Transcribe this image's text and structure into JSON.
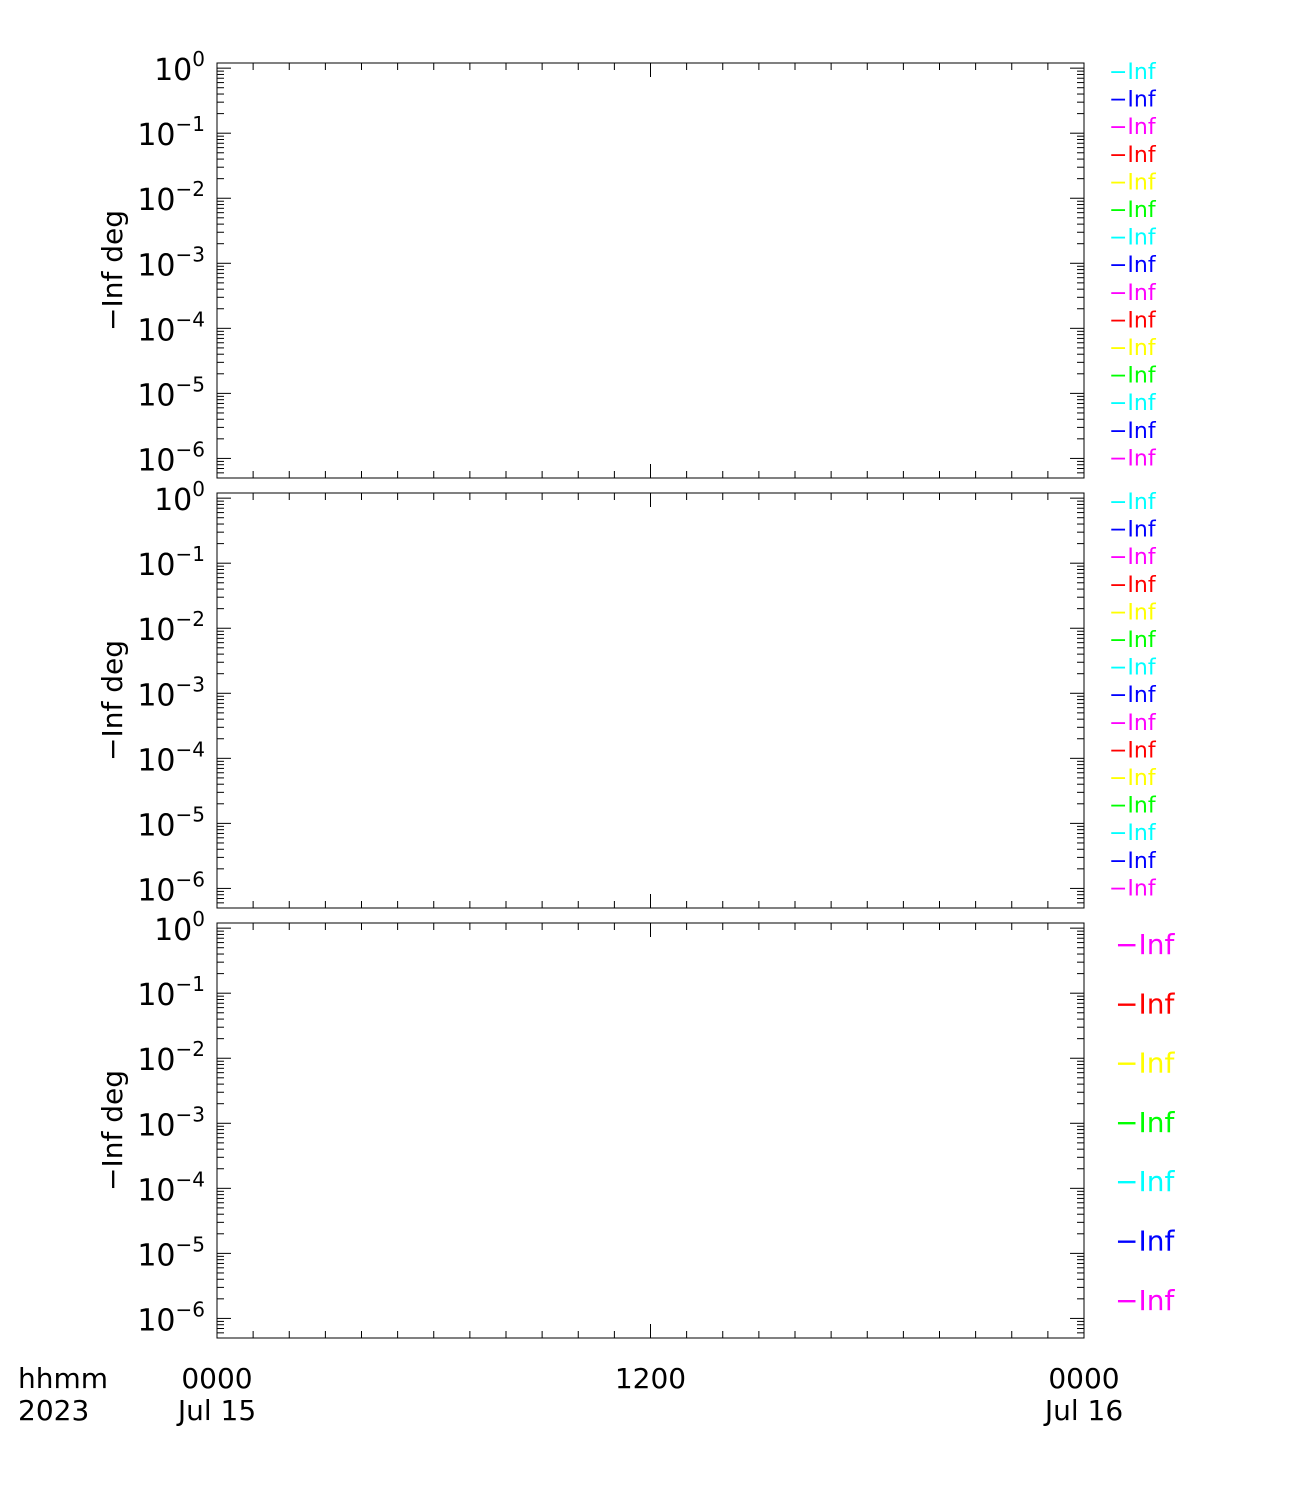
{
  "chart_data": [
    {
      "type": "line",
      "panel": "top",
      "ylabel": "−Inf deg",
      "yscale": "log",
      "ylim": [
        5e-07,
        1.2
      ],
      "y_ticks": [
        {
          "exp": "0",
          "value": 1
        },
        {
          "exp": "−1",
          "value": 0.1
        },
        {
          "exp": "−2",
          "value": 0.01
        },
        {
          "exp": "−3",
          "value": 0.001
        },
        {
          "exp": "−4",
          "value": 0.0001
        },
        {
          "exp": "−5",
          "value": 1e-05
        },
        {
          "exp": "−6",
          "value": 1e-06
        }
      ],
      "series": [
        {
          "name": "−Inf",
          "color": "#00ffff"
        },
        {
          "name": "−Inf",
          "color": "#0000ff"
        },
        {
          "name": "−Inf",
          "color": "#ff00ff"
        },
        {
          "name": "−Inf",
          "color": "#ff0000"
        },
        {
          "name": "−Inf",
          "color": "#ffff00"
        },
        {
          "name": "−Inf",
          "color": "#00ff00"
        },
        {
          "name": "−Inf",
          "color": "#00ffff"
        },
        {
          "name": "−Inf",
          "color": "#0000ff"
        },
        {
          "name": "−Inf",
          "color": "#ff00ff"
        },
        {
          "name": "−Inf",
          "color": "#ff0000"
        },
        {
          "name": "−Inf",
          "color": "#ffff00"
        },
        {
          "name": "−Inf",
          "color": "#00ff00"
        },
        {
          "name": "−Inf",
          "color": "#00ffff"
        },
        {
          "name": "−Inf",
          "color": "#0000ff"
        },
        {
          "name": "−Inf",
          "color": "#ff00ff"
        }
      ]
    },
    {
      "type": "line",
      "panel": "middle",
      "ylabel": "−Inf deg",
      "yscale": "log",
      "ylim": [
        5e-07,
        1.2
      ],
      "y_ticks": [
        {
          "exp": "0",
          "value": 1
        },
        {
          "exp": "−1",
          "value": 0.1
        },
        {
          "exp": "−2",
          "value": 0.01
        },
        {
          "exp": "−3",
          "value": 0.001
        },
        {
          "exp": "−4",
          "value": 0.0001
        },
        {
          "exp": "−5",
          "value": 1e-05
        },
        {
          "exp": "−6",
          "value": 1e-06
        }
      ],
      "series": [
        {
          "name": "−Inf",
          "color": "#00ffff"
        },
        {
          "name": "−Inf",
          "color": "#0000ff"
        },
        {
          "name": "−Inf",
          "color": "#ff00ff"
        },
        {
          "name": "−Inf",
          "color": "#ff0000"
        },
        {
          "name": "−Inf",
          "color": "#ffff00"
        },
        {
          "name": "−Inf",
          "color": "#00ff00"
        },
        {
          "name": "−Inf",
          "color": "#00ffff"
        },
        {
          "name": "−Inf",
          "color": "#0000ff"
        },
        {
          "name": "−Inf",
          "color": "#ff00ff"
        },
        {
          "name": "−Inf",
          "color": "#ff0000"
        },
        {
          "name": "−Inf",
          "color": "#ffff00"
        },
        {
          "name": "−Inf",
          "color": "#00ff00"
        },
        {
          "name": "−Inf",
          "color": "#00ffff"
        },
        {
          "name": "−Inf",
          "color": "#0000ff"
        },
        {
          "name": "−Inf",
          "color": "#ff00ff"
        }
      ]
    },
    {
      "type": "line",
      "panel": "bottom",
      "ylabel": "−Inf deg",
      "yscale": "log",
      "ylim": [
        5e-07,
        1.2
      ],
      "y_ticks": [
        {
          "exp": "0",
          "value": 1
        },
        {
          "exp": "−1",
          "value": 0.1
        },
        {
          "exp": "−2",
          "value": 0.01
        },
        {
          "exp": "−3",
          "value": 0.001
        },
        {
          "exp": "−4",
          "value": 0.0001
        },
        {
          "exp": "−5",
          "value": 1e-05
        },
        {
          "exp": "−6",
          "value": 1e-06
        }
      ],
      "series": [
        {
          "name": "−Inf",
          "color": "#ff00ff"
        },
        {
          "name": "−Inf",
          "color": "#ff0000"
        },
        {
          "name": "−Inf",
          "color": "#ffff00"
        },
        {
          "name": "−Inf",
          "color": "#00ff00"
        },
        {
          "name": "−Inf",
          "color": "#00ffff"
        },
        {
          "name": "−Inf",
          "color": "#0000ff"
        },
        {
          "name": "−Inf",
          "color": "#ff00ff"
        }
      ]
    }
  ],
  "x_axis": {
    "range_hours": [
      0,
      24
    ],
    "major_ticks": [
      {
        "hour": 0,
        "time": "0000",
        "date": "Jul 15"
      },
      {
        "hour": 12,
        "time": "1200",
        "date": ""
      },
      {
        "hour": 24,
        "time": "0000",
        "date": "Jul 16"
      }
    ],
    "minor_tick_interval_hours": 1,
    "label_line1": "hhmm",
    "label_line2": "2023"
  },
  "tick_base": "10"
}
